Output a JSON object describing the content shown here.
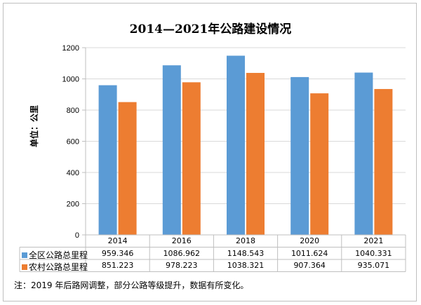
{
  "colors": {
    "series1": "#5b9bd5",
    "series2": "#ed7d31",
    "axis": "#bfbfbf",
    "grid": "#d9d9d9"
  },
  "chart_data": {
    "type": "bar",
    "title": "2014—2021年公路建设情况",
    "ylabel": "单位：公里",
    "xlabel": "",
    "categories": [
      "2014",
      "2016",
      "2018",
      "2020",
      "2021"
    ],
    "ylim": [
      0,
      1200
    ],
    "yticks": [
      "0",
      "200",
      "400",
      "600",
      "800",
      "1000",
      "1200"
    ],
    "grid": true,
    "legend": "data-table-left",
    "series": [
      {
        "name": "全区公路总里程",
        "values": [
          959.346,
          1086.962,
          1148.543,
          1011.624,
          1040.331
        ],
        "labels": [
          "959.346",
          "1086.962",
          "1148.543",
          "1011.624",
          "1040.331"
        ]
      },
      {
        "name": "农村公路总里程",
        "values": [
          851.223,
          978.223,
          1038.321,
          907.364,
          935.071
        ],
        "labels": [
          "851.223",
          "978.223",
          "1038.321",
          "907.364",
          "935.071"
        ]
      }
    ]
  },
  "note": "注：2019 年后路网调整，部分公路等级提升，数据有所变化。"
}
